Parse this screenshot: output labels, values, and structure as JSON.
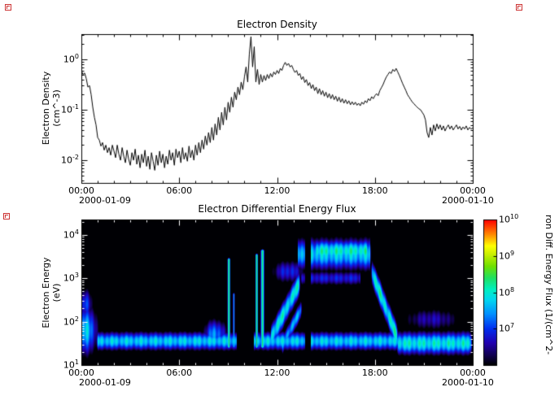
{
  "chart_data": [
    {
      "type": "line",
      "title": "Electron Density",
      "ylabel_lines": [
        "Electron Density",
        "(cm^-3)"
      ],
      "yscale": "log",
      "ylim_log10": [
        -2.45,
        0.5
      ],
      "ytick_exponents": [
        0,
        -1,
        -2
      ],
      "x_ticks": [
        "00:00",
        "06:00",
        "12:00",
        "18:00",
        "00:00"
      ],
      "x_tick_hours": [
        0,
        6,
        12,
        18,
        24
      ],
      "xlim_hours": [
        0,
        24
      ],
      "date_left": "2000-01-09",
      "date_right": "2000-01-10",
      "series": {
        "name": "electron_density",
        "units": "cm^-3",
        "t0_hours": 0,
        "dt_hours": 0.1,
        "log10_values": [
          -0.22,
          -0.3,
          -0.27,
          -0.38,
          -0.55,
          -0.52,
          -0.7,
          -0.95,
          -1.15,
          -1.3,
          -1.55,
          -1.6,
          -1.72,
          -1.65,
          -1.8,
          -1.7,
          -1.85,
          -1.75,
          -1.9,
          -1.7,
          -1.82,
          -1.95,
          -1.7,
          -1.88,
          -2.0,
          -1.75,
          -1.92,
          -2.05,
          -1.8,
          -1.98,
          -2.1,
          -1.85,
          -2.0,
          -1.78,
          -2.08,
          -1.9,
          -2.15,
          -1.88,
          -2.05,
          -1.8,
          -2.12,
          -1.92,
          -2.18,
          -1.85,
          -2.02,
          -2.2,
          -1.9,
          -2.1,
          -1.82,
          -2.05,
          -1.88,
          -2.15,
          -1.92,
          -2.08,
          -1.8,
          -2.0,
          -1.85,
          -2.1,
          -1.78,
          -1.95,
          -1.82,
          -2.05,
          -1.75,
          -1.98,
          -1.85,
          -2.02,
          -1.72,
          -1.95,
          -1.8,
          -2.0,
          -1.7,
          -1.9,
          -1.65,
          -1.85,
          -1.6,
          -1.78,
          -1.52,
          -1.7,
          -1.45,
          -1.65,
          -1.35,
          -1.6,
          -1.28,
          -1.5,
          -1.15,
          -1.4,
          -1.05,
          -1.3,
          -0.95,
          -1.2,
          -0.85,
          -1.05,
          -0.75,
          -0.95,
          -0.65,
          -0.8,
          -0.55,
          -0.7,
          -0.45,
          -0.6,
          -0.35,
          -0.15,
          -0.45,
          0.1,
          0.45,
          -0.15,
          0.25,
          -0.45,
          -0.2,
          -0.5,
          -0.3,
          -0.45,
          -0.32,
          -0.42,
          -0.3,
          -0.38,
          -0.28,
          -0.35,
          -0.25,
          -0.3,
          -0.22,
          -0.28,
          -0.18,
          -0.22,
          -0.12,
          -0.06,
          -0.12,
          -0.08,
          -0.15,
          -0.12,
          -0.2,
          -0.26,
          -0.22,
          -0.32,
          -0.28,
          -0.4,
          -0.34,
          -0.46,
          -0.4,
          -0.52,
          -0.46,
          -0.58,
          -0.5,
          -0.62,
          -0.55,
          -0.68,
          -0.58,
          -0.7,
          -0.62,
          -0.73,
          -0.65,
          -0.76,
          -0.68,
          -0.78,
          -0.7,
          -0.8,
          -0.73,
          -0.83,
          -0.75,
          -0.85,
          -0.78,
          -0.87,
          -0.8,
          -0.88,
          -0.82,
          -0.9,
          -0.84,
          -0.9,
          -0.85,
          -0.91,
          -0.87,
          -0.92,
          -0.85,
          -0.89,
          -0.82,
          -0.86,
          -0.78,
          -0.82,
          -0.74,
          -0.78,
          -0.72,
          -0.68,
          -0.72,
          -0.62,
          -0.56,
          -0.5,
          -0.42,
          -0.35,
          -0.3,
          -0.25,
          -0.28,
          -0.2,
          -0.24,
          -0.18,
          -0.25,
          -0.32,
          -0.4,
          -0.48,
          -0.55,
          -0.62,
          -0.7,
          -0.75,
          -0.8,
          -0.85,
          -0.88,
          -0.92,
          -0.95,
          -0.98,
          -1.0,
          -1.05,
          -1.1,
          -1.2,
          -1.45,
          -1.55,
          -1.35,
          -1.5,
          -1.3,
          -1.42,
          -1.28,
          -1.38,
          -1.3,
          -1.4,
          -1.32,
          -1.42,
          -1.35,
          -1.3,
          -1.38,
          -1.32,
          -1.4,
          -1.35,
          -1.3,
          -1.38,
          -1.33,
          -1.4,
          -1.34,
          -1.38,
          -1.32,
          -1.4,
          -1.35,
          -1.38,
          -1.36
        ]
      },
      "line_color": "#000000"
    },
    {
      "type": "heatmap",
      "title": "Electron Differential Energy Flux",
      "ylabel_lines": [
        "Electron Energy",
        "(eV)"
      ],
      "yscale": "log",
      "ylim_log10": [
        1,
        4.35
      ],
      "ytick_exponents": [
        1,
        2,
        3,
        4
      ],
      "x_ticks": [
        "00:00",
        "06:00",
        "12:00",
        "18:00",
        "00:00"
      ],
      "x_tick_hours": [
        0,
        6,
        12,
        18,
        24
      ],
      "xlim_hours": [
        0,
        24
      ],
      "date_left": "2000-01-09",
      "date_right": "2000-01-10",
      "background": "#000000",
      "colorbar": {
        "label": "ron Diff. Energy Flux (1/(cm^2-",
        "range_log10": [
          6,
          10
        ],
        "tick_exponents": [
          7,
          8,
          9,
          10
        ],
        "stops": [
          [
            0.0,
            "#000004"
          ],
          [
            0.06,
            "#10004a"
          ],
          [
            0.15,
            "#2200b0"
          ],
          [
            0.25,
            "#0030f0"
          ],
          [
            0.35,
            "#0090ff"
          ],
          [
            0.45,
            "#00d8f0"
          ],
          [
            0.52,
            "#00f0c0"
          ],
          [
            0.6,
            "#20e060"
          ],
          [
            0.68,
            "#70e000"
          ],
          [
            0.76,
            "#c8f000"
          ],
          [
            0.82,
            "#ffff00"
          ],
          [
            0.9,
            "#ff8800"
          ],
          [
            1.0,
            "#ff0000"
          ]
        ]
      },
      "features": [
        {
          "type": "band",
          "t0": 0.9,
          "t1": 24,
          "ec": 1.55,
          "w": 0.16,
          "p": 7.7
        },
        {
          "type": "band",
          "t0": 19.3,
          "t1": 24,
          "ec": 1.5,
          "w": 0.2,
          "p": 7.9
        },
        {
          "type": "blob",
          "tc": 0.35,
          "wt": 0.5,
          "ec": 1.8,
          "we": 0.45,
          "p": 7.7
        },
        {
          "type": "blob",
          "tc": 0.3,
          "wt": 0.35,
          "ec": 2.4,
          "we": 0.3,
          "p": 7.0
        },
        {
          "type": "blob",
          "tc": 8.2,
          "wt": 0.6,
          "ec": 1.7,
          "we": 0.28,
          "p": 7.4
        },
        {
          "type": "streak",
          "tc": 9.05,
          "wt": 0.07,
          "e0": 1.35,
          "e1": 3.5,
          "p": 8.2
        },
        {
          "type": "streak",
          "tc": 9.35,
          "wt": 0.05,
          "e0": 1.35,
          "e1": 2.7,
          "p": 7.5
        },
        {
          "type": "streak",
          "tc": 10.75,
          "wt": 0.06,
          "e0": 1.35,
          "e1": 3.6,
          "p": 8.5
        },
        {
          "type": "streak",
          "tc": 11.1,
          "wt": 0.09,
          "e0": 1.35,
          "e1": 3.7,
          "p": 8.3
        },
        {
          "type": "ramp",
          "t0": 11.6,
          "t1": 13.4,
          "e_start": 1.6,
          "e_end": 2.9,
          "w": 0.22,
          "p": 7.9
        },
        {
          "type": "ramp",
          "t0": 12.3,
          "t1": 13.5,
          "e_start": 1.45,
          "e_end": 2.3,
          "w": 0.16,
          "p": 7.5
        },
        {
          "type": "blob",
          "tc": 12.7,
          "wt": 0.9,
          "ec": 3.15,
          "we": 0.22,
          "p": 6.9
        },
        {
          "type": "band",
          "t0": 13.2,
          "t1": 17.8,
          "ec": 3.55,
          "w": 0.28,
          "p": 7.7
        },
        {
          "type": "band",
          "t0": 14.3,
          "t1": 17.6,
          "ec": 3.62,
          "w": 0.2,
          "p": 8.0
        },
        {
          "type": "band",
          "t0": 13.4,
          "t1": 17.2,
          "ec": 3.0,
          "w": 0.14,
          "p": 6.8
        },
        {
          "type": "ramp",
          "t0": 17.8,
          "t1": 19.4,
          "e_start": 3.15,
          "e_end": 1.6,
          "w": 0.22,
          "p": 8.0
        },
        {
          "type": "blob",
          "tc": 21.5,
          "wt": 1.6,
          "ec": 2.05,
          "we": 0.22,
          "p": 6.6
        }
      ],
      "gaps_hours": [
        [
          9.55,
          10.6
        ],
        [
          13.7,
          14.05
        ]
      ]
    }
  ],
  "artifact_color": "#cc3333",
  "text_color": "#000000",
  "background_color": "#ffffff"
}
